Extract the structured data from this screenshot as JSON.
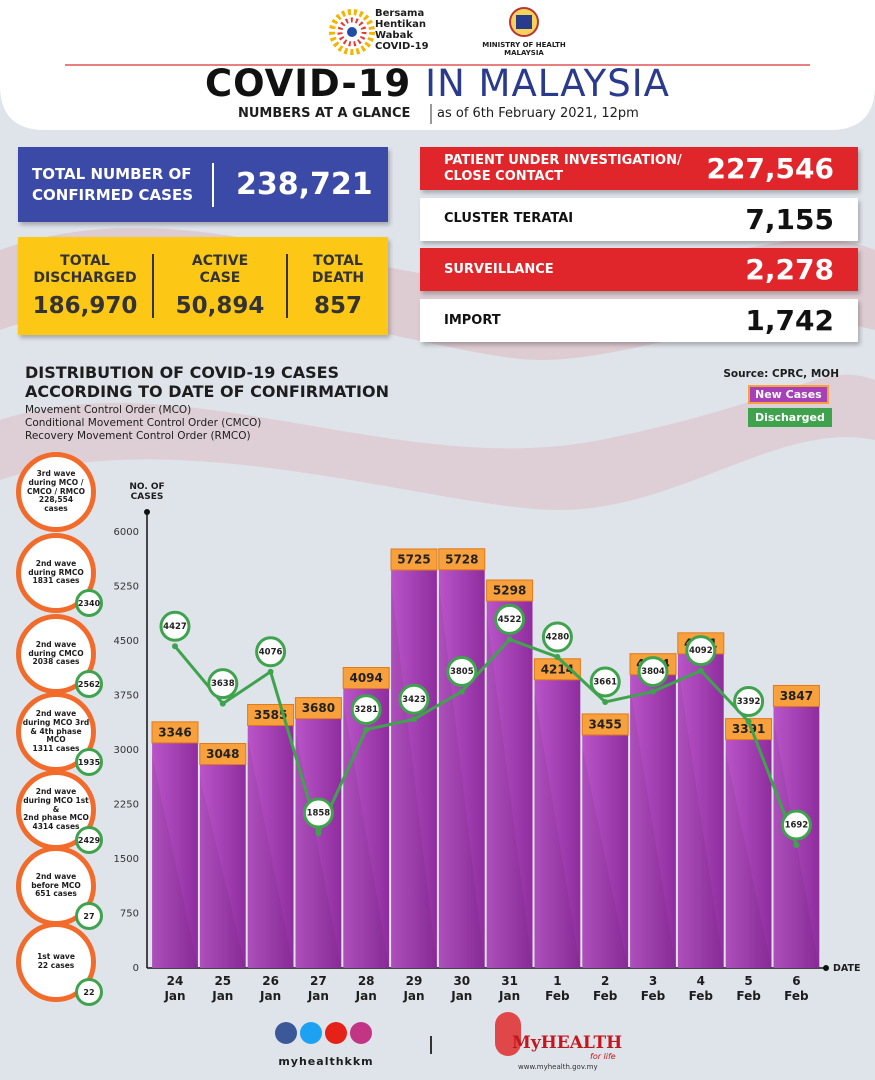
{
  "header": {
    "logo_text": "Bersama\nHentikan\nWabak\nCOVID-19",
    "ministry": "MINISTRY OF HEALTH\nMALAYSIA",
    "title_main": "COVID-19",
    "title_rest": "IN MALAYSIA",
    "subtitle": "NUMBERS AT A GLANCE",
    "date": "as of 6th February 2021, 12pm"
  },
  "summary": {
    "confirmed": {
      "label": "TOTAL NUMBER OF\nCONFIRMED CASES",
      "value": "238,721"
    },
    "discharged": {
      "label": "TOTAL\nDISCHARGED",
      "value": "186,970"
    },
    "active": {
      "label": "ACTIVE\nCASE",
      "value": "50,894"
    },
    "death": {
      "label": "TOTAL\nDEATH",
      "value": "857"
    }
  },
  "details": [
    {
      "label": "PATIENT UNDER INVESTIGATION/\nCLOSE CONTACT",
      "value": "227,546"
    },
    {
      "label": "CLUSTER TERATAI",
      "value": "7,155"
    },
    {
      "label": "SURVEILLANCE",
      "value": "2,278"
    },
    {
      "label": "IMPORT",
      "value": "1,742"
    }
  ],
  "chart_data": {
    "type": "bar",
    "title": "DISTRIBUTION OF COVID-19 CASES\nACCORDING TO DATE OF CONFIRMATION",
    "notes": [
      "Movement Control Order (MCO)",
      "Conditional Movement Control Order (CMCO)",
      "Recovery Movement Control Order (RMCO)"
    ],
    "source": "Source: CPRC, MOH",
    "y_label": "NO. OF\nCASES",
    "x_label": "DATE",
    "categories": [
      "24\nJan",
      "25\nJan",
      "26\nJan",
      "27\nJan",
      "28\nJan",
      "29\nJan",
      "30\nJan",
      "31\nJan",
      "1\nFeb",
      "2\nFeb",
      "3\nFeb",
      "4\nFeb",
      "5\nFeb",
      "6\nFeb"
    ],
    "series": [
      {
        "name": "New Cases",
        "type": "bar",
        "color": "#a63fb8",
        "values": [
          3346,
          3048,
          3585,
          3680,
          4094,
          5725,
          5728,
          5298,
          4214,
          3455,
          4284,
          4571,
          3391,
          3847
        ]
      },
      {
        "name": "Discharged",
        "type": "line",
        "color": "#3fa34d",
        "values": [
          4427,
          3638,
          4076,
          1858,
          3281,
          3423,
          3805,
          4522,
          4280,
          3661,
          3804,
          4092,
          3392,
          1692
        ]
      }
    ],
    "ylim": [
      0,
      6000
    ],
    "yticks": [
      0,
      750,
      1500,
      2250,
      3000,
      3750,
      4500,
      5250,
      6000
    ]
  },
  "waves": [
    {
      "label": "3rd wave\nduring MCO /\nCMCO / RMCO\n228,554\ncases"
    },
    {
      "label": "2nd wave\nduring RMCO\n1831 cases",
      "discharged": "2340"
    },
    {
      "label": "2nd wave\nduring CMCO\n2038 cases",
      "discharged": "2562"
    },
    {
      "label": "2nd wave\nduring MCO 3rd\n& 4th phase MCO\n1311 cases",
      "discharged": "1935"
    },
    {
      "label": "2nd wave\nduring MCO 1st &\n2nd phase MCO\n4314 cases",
      "discharged": "2429"
    },
    {
      "label": "2nd wave\nbefore MCO\n651 cases",
      "discharged": "27"
    },
    {
      "label": "1st wave\n22 cases",
      "discharged": "22"
    }
  ],
  "footer": {
    "handle": "myhealthkkm",
    "brand": "MyHEALTH",
    "tagline": "for life",
    "url": "www.myhealth.gov.my"
  }
}
